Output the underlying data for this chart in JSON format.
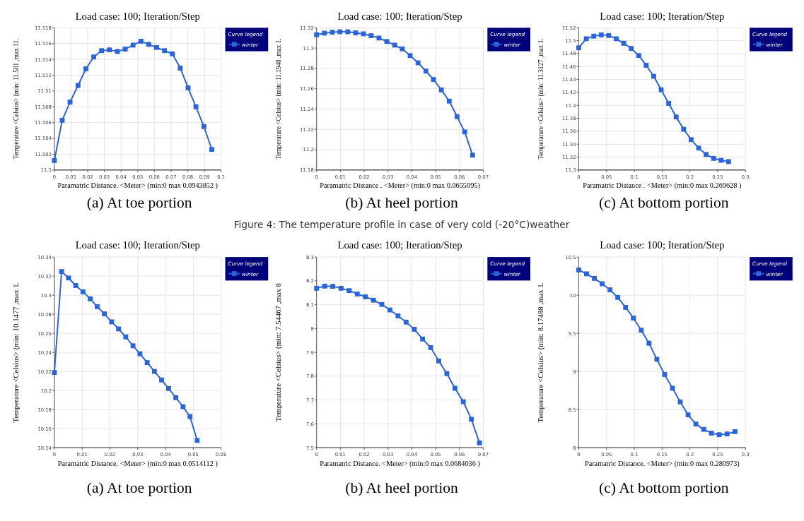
{
  "chart_data": [
    {
      "type": "line",
      "title": "Load case: 100; Iteration/Step",
      "xlabel": "Paramatric Distance. <Meter> (min:0 max 0.0943852 )",
      "ylabel": "Temperature <Celsius> (min: 11.501 ,max 11.",
      "legend_title": "Curve legend",
      "annotations": [
        "(a) At toe portion"
      ],
      "xlim": [
        0,
        0.1
      ],
      "xticks": [
        0,
        0.01,
        0.02,
        0.03,
        0.04,
        0.05,
        0.06,
        0.07,
        0.08,
        0.09,
        0.1
      ],
      "ylim": [
        11.5,
        11.518
      ],
      "yticks": [
        11.5,
        11.502,
        11.504,
        11.506,
        11.508,
        11.51,
        11.512,
        11.514,
        11.516,
        11.518
      ],
      "grid": true,
      "legend": "top right",
      "marker": "square",
      "line_style": "solid",
      "series": [
        {
          "name": "winter",
          "color": "#2a64d6",
          "x": [
            0,
            0.0047,
            0.0094,
            0.0142,
            0.0189,
            0.0236,
            0.0283,
            0.033,
            0.0378,
            0.0425,
            0.0472,
            0.0519,
            0.0566,
            0.0613,
            0.0661,
            0.0708,
            0.0755,
            0.0802,
            0.0849,
            0.0897,
            0.0944
          ],
          "values": [
            11.5012,
            11.5063,
            11.5086,
            11.5107,
            11.5128,
            11.5143,
            11.5151,
            11.5152,
            11.515,
            11.5153,
            11.5158,
            11.5163,
            11.5159,
            11.5155,
            11.5151,
            11.5147,
            11.5129,
            11.5104,
            11.508,
            11.5055,
            11.5026
          ]
        }
      ]
    },
    {
      "type": "line",
      "title": "Load case: 100; Iteration/Step",
      "xlabel": "Paramatric Distance . <Meter> (min:0 max 0.0655095)",
      "ylabel": "Temperature <Celsius> (min: 11.1948 ,max 1.",
      "legend_title": "Curve legend",
      "annotations": [
        "(b) At heel portion",
        "Figure 4: The temperature profile in case of very cold (-20°C)weather"
      ],
      "xlim": [
        0,
        0.07
      ],
      "xticks": [
        0,
        0.01,
        0.02,
        0.03,
        0.04,
        0.05,
        0.06,
        0.07
      ],
      "ylim": [
        11.18,
        11.32
      ],
      "yticks": [
        11.18,
        11.2,
        11.22,
        11.24,
        11.26,
        11.28,
        11.3,
        11.32
      ],
      "grid": true,
      "legend": "top right",
      "marker": "square",
      "line_style": "solid",
      "series": [
        {
          "name": "winter",
          "color": "#2a64d6",
          "x": [
            0,
            0.0033,
            0.0066,
            0.0098,
            0.0131,
            0.0164,
            0.0197,
            0.0229,
            0.0262,
            0.0295,
            0.0328,
            0.036,
            0.0393,
            0.0426,
            0.0459,
            0.0491,
            0.0524,
            0.0557,
            0.059,
            0.0622,
            0.0655
          ],
          "values": [
            11.3131,
            11.3147,
            11.3156,
            11.316,
            11.316,
            11.315,
            11.314,
            11.3122,
            11.3099,
            11.3065,
            11.3029,
            11.2992,
            11.2926,
            11.2855,
            11.2773,
            11.2691,
            11.2588,
            11.2478,
            11.2325,
            11.2175,
            11.1946
          ]
        }
      ]
    },
    {
      "type": "line",
      "title": "Load case: 100; Iteration/Step",
      "xlabel": "Paramatric Distance . <Meter> (min:0 max 0.269628 )",
      "ylabel": "Temperature <Celsius> (min: 11.3127 ,max 1.",
      "legend_title": "Curve legend",
      "annotations": [
        "(c) At bottom portion"
      ],
      "xlim": [
        0,
        0.3
      ],
      "xticks": [
        0,
        0.05,
        0.1,
        0.15,
        0.2,
        0.25,
        0.3
      ],
      "ylim": [
        11.3,
        11.52
      ],
      "yticks": [
        11.3,
        11.32,
        11.34,
        11.36,
        11.38,
        11.4,
        11.42,
        11.44,
        11.46,
        11.48,
        11.5,
        11.52
      ],
      "grid": true,
      "legend": "top right",
      "marker": "square",
      "line_style": "solid",
      "series": [
        {
          "name": "winter",
          "color": "#2a64d6",
          "x": [
            0,
            0.0135,
            0.027,
            0.0404,
            0.0539,
            0.0674,
            0.0809,
            0.0944,
            0.1079,
            0.1213,
            0.1348,
            0.1483,
            0.1618,
            0.1753,
            0.1888,
            0.2022,
            0.2157,
            0.2292,
            0.2427,
            0.2562,
            0.2696
          ],
          "values": [
            11.489,
            11.503,
            11.507,
            11.509,
            11.508,
            11.503,
            11.496,
            11.488,
            11.477,
            11.462,
            11.445,
            11.424,
            11.403,
            11.382,
            11.363,
            11.347,
            11.334,
            11.324,
            11.318,
            11.315,
            11.313
          ]
        }
      ]
    },
    {
      "type": "line",
      "title": "Load case: 100; Iteration/Step",
      "xlabel": "Paramatric Distance. <Meter> (min:0 max 0.0514112 )",
      "ylabel": "Temperature <Celsius> (min: 10.1477 ,max 1.",
      "legend_title": "Curve legend",
      "annotations": [
        "(a) At toe portion"
      ],
      "xlim": [
        0,
        0.06
      ],
      "xticks": [
        0,
        0.01,
        0.02,
        0.03,
        0.04,
        0.05,
        0.06
      ],
      "ylim": [
        10.14,
        10.34
      ],
      "yticks": [
        10.14,
        10.16,
        10.18,
        10.2,
        10.22,
        10.24,
        10.26,
        10.28,
        10.3,
        10.32,
        10.34
      ],
      "grid": true,
      "legend": "top right",
      "marker": "square",
      "line_style": "solid",
      "series": [
        {
          "name": "winter",
          "color": "#2a64d6",
          "x": [
            0,
            0.0026,
            0.0051,
            0.0077,
            0.0103,
            0.0129,
            0.0154,
            0.018,
            0.0206,
            0.0231,
            0.0257,
            0.0283,
            0.0308,
            0.0334,
            0.036,
            0.0386,
            0.0411,
            0.0437,
            0.0463,
            0.0488,
            0.0514
          ],
          "values": [
            10.2189,
            10.3248,
            10.318,
            10.3101,
            10.3035,
            10.2962,
            10.288,
            10.2804,
            10.272,
            10.2646,
            10.2562,
            10.2469,
            10.2385,
            10.2293,
            10.22,
            10.211,
            10.202,
            10.1925,
            10.183,
            10.1727,
            10.1476
          ]
        }
      ]
    },
    {
      "type": "line",
      "title": "Load case: 100; Iteration/Step",
      "xlabel": "Paramatric Distance. <Meter> (min:0 max 0.0684036 )",
      "ylabel": "Temperature <Celsius> (min: 7.54467 ,max 8",
      "legend_title": "Curve legend",
      "annotations": [
        "(b) At heel portion"
      ],
      "xlim": [
        0,
        0.07
      ],
      "xticks": [
        0,
        0.01,
        0.02,
        0.03,
        0.04,
        0.05,
        0.06,
        0.07
      ],
      "ylim": [
        7.5,
        8.3
      ],
      "yticks": [
        7.5,
        7.6,
        7.7,
        7.8,
        7.9,
        8,
        8.1,
        8.2,
        8.3
      ],
      "grid": true,
      "legend": "top right",
      "marker": "square",
      "line_style": "solid",
      "series": [
        {
          "name": "winter",
          "color": "#2a64d6",
          "x": [
            0,
            0.0034,
            0.0068,
            0.0103,
            0.0137,
            0.0171,
            0.0205,
            0.0239,
            0.0274,
            0.0308,
            0.0342,
            0.0376,
            0.041,
            0.0445,
            0.0479,
            0.0513,
            0.0547,
            0.0581,
            0.0616,
            0.065,
            0.0684
          ],
          "values": [
            8.169,
            8.178,
            8.177,
            8.169,
            8.159,
            8.145,
            8.133,
            8.119,
            8.101,
            8.078,
            8.053,
            8.027,
            7.997,
            7.956,
            7.92,
            7.864,
            7.811,
            7.749,
            7.693,
            7.619,
            7.52
          ]
        }
      ]
    },
    {
      "type": "line",
      "title": "Load case: 100; Iteration/Step",
      "xlabel": "Paramatric Distance. <Meter> (min:0 max 0.280973)",
      "ylabel": "Temperature <Celsius> (min: 8.17488 ,max 1.",
      "legend_title": "Curve legend",
      "annotations": [
        "(c) At bottom portion"
      ],
      "xlim": [
        0,
        0.3
      ],
      "xticks": [
        0,
        0.05,
        0.1,
        0.15,
        0.2,
        0.25,
        0.3
      ],
      "ylim": [
        8,
        10.5
      ],
      "yticks": [
        8,
        8.5,
        9,
        9.5,
        10,
        10.5
      ],
      "grid": true,
      "legend": "top right",
      "marker": "square",
      "line_style": "solid",
      "series": [
        {
          "name": "winter",
          "color": "#2a64d6",
          "x": [
            0,
            0.014,
            0.0281,
            0.0421,
            0.0562,
            0.0702,
            0.0843,
            0.0983,
            0.1124,
            0.1264,
            0.1405,
            0.1545,
            0.1686,
            0.1826,
            0.1967,
            0.2107,
            0.2248,
            0.2388,
            0.2528,
            0.2669,
            0.281
          ],
          "values": [
            10.33,
            10.28,
            10.22,
            10.15,
            10.07,
            9.97,
            9.84,
            9.7,
            9.54,
            9.37,
            9.16,
            8.96,
            8.78,
            8.6,
            8.43,
            8.31,
            8.24,
            8.19,
            8.17,
            8.18,
            8.21
          ]
        }
      ]
    }
  ]
}
